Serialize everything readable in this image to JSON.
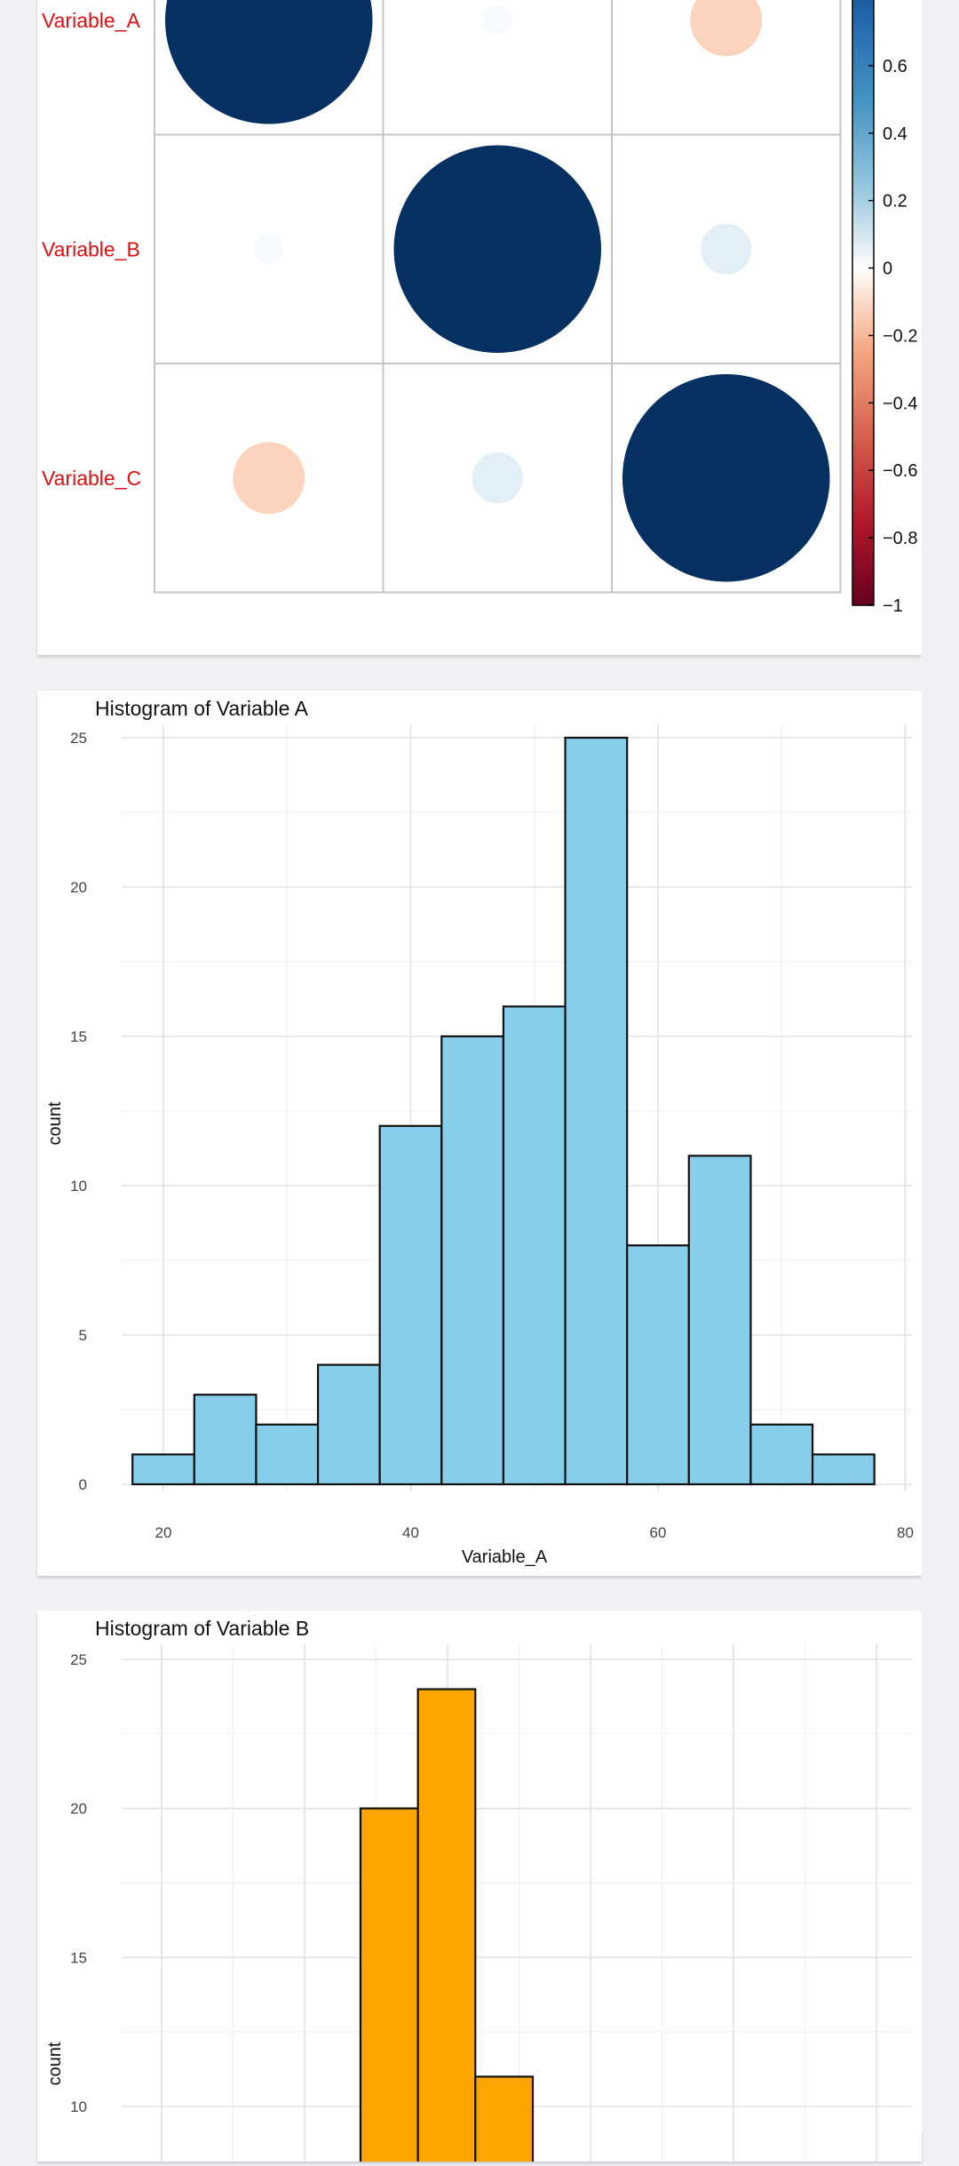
{
  "chart_data": [
    {
      "type": "heatmap",
      "variables": [
        "Variable_A",
        "Variable_B",
        "Variable_C"
      ],
      "matrix": [
        [
          1.0,
          0.02,
          -0.12
        ],
        [
          0.02,
          1.0,
          0.06
        ],
        [
          -0.12,
          0.06,
          1.0
        ]
      ],
      "colorbar": {
        "min": -1,
        "max": 1,
        "ticks": [
          0.6,
          0.4,
          0.2,
          0,
          -0.2,
          -0.4,
          -0.6,
          -0.8,
          -1
        ],
        "tick_labels": [
          "0.6",
          "0.4",
          "0.2",
          "0",
          "−0.2",
          "−0.4",
          "−0.6",
          "−0.8",
          "−1"
        ]
      },
      "label_color": "#e01010",
      "positive_color": "#053061",
      "negative_color": "#67001f"
    },
    {
      "type": "bar",
      "title": "Histogram of Variable A",
      "xlabel": "Variable_A",
      "ylabel": "count",
      "bin_width": 5,
      "bin_centers": [
        20,
        25,
        30,
        35,
        40,
        45,
        50,
        55,
        60,
        65,
        70,
        75
      ],
      "values": [
        1,
        3,
        2,
        4,
        12,
        15,
        16,
        25,
        8,
        11,
        2,
        1
      ],
      "xlim": [
        15,
        80
      ],
      "ylim": [
        0,
        26
      ],
      "xticks": [
        20,
        40,
        60,
        80
      ],
      "yticks": [
        0,
        5,
        10,
        15,
        20,
        25
      ],
      "fill": "#87ceeb",
      "grid": true
    },
    {
      "type": "bar",
      "title": "Histogram of Variable B",
      "xlabel": "",
      "ylabel": "count",
      "bins": [
        {
          "center": 30,
          "value": 20
        },
        {
          "center": 34,
          "value": 24
        },
        {
          "center": 38,
          "value": 11
        }
      ],
      "bin_width": 4,
      "xlim": [
        16,
        68
      ],
      "ylim": [
        8,
        25.5
      ],
      "yticks": [
        10,
        15,
        20,
        25
      ],
      "fill": "#ffa500",
      "grid": true
    }
  ]
}
